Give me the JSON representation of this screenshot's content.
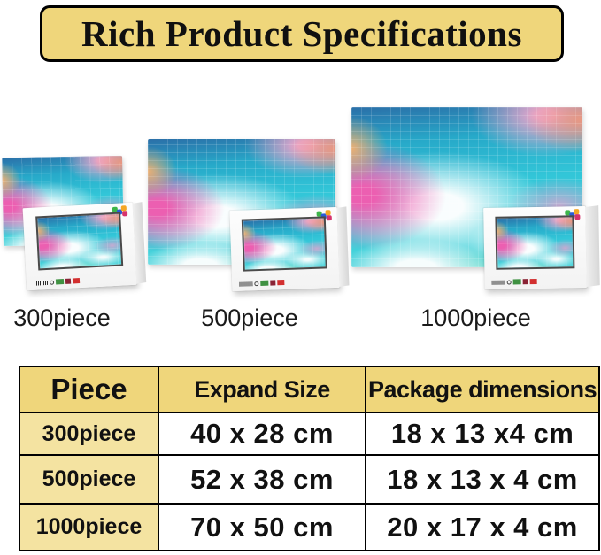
{
  "banner": {
    "title": "Rich Product Specifications",
    "bg_color": "#efd67b",
    "border_color": "#000000"
  },
  "artwork": {
    "description": "pastel pink and teal cloud sky jigsaw puzzle artwork",
    "colors": {
      "sky_teal": "#32c6d8",
      "deep_blue": "#2b6fa8",
      "cloud_pink": "#ec5fb1",
      "cloud_white": "#ffffff",
      "peach": "#f6b06e"
    }
  },
  "box": {
    "logo_icon": "puzzle-pieces-icon",
    "marks": [
      "barcode",
      "green-seal",
      "dark-red-seal",
      "red-seal"
    ]
  },
  "puzzles": [
    {
      "label": "300piece"
    },
    {
      "label": "500piece"
    },
    {
      "label": "1000piece"
    }
  ],
  "spec_table": {
    "headers": [
      "Piece",
      "Expand Size",
      "Package dimensions"
    ],
    "header_bg": "#efd67b",
    "row_label_bg": "#f4e3a1",
    "rows": [
      {
        "piece": "300piece",
        "expand_size": "40 x 28 cm",
        "package_dimensions": "18 x 13 x4 cm"
      },
      {
        "piece": "500piece",
        "expand_size": "52 x 38 cm",
        "package_dimensions": "18 x 13 x 4 cm"
      },
      {
        "piece": "1000piece",
        "expand_size": "70 x 50 cm",
        "package_dimensions": "20 x 17 x 4 cm"
      }
    ]
  }
}
